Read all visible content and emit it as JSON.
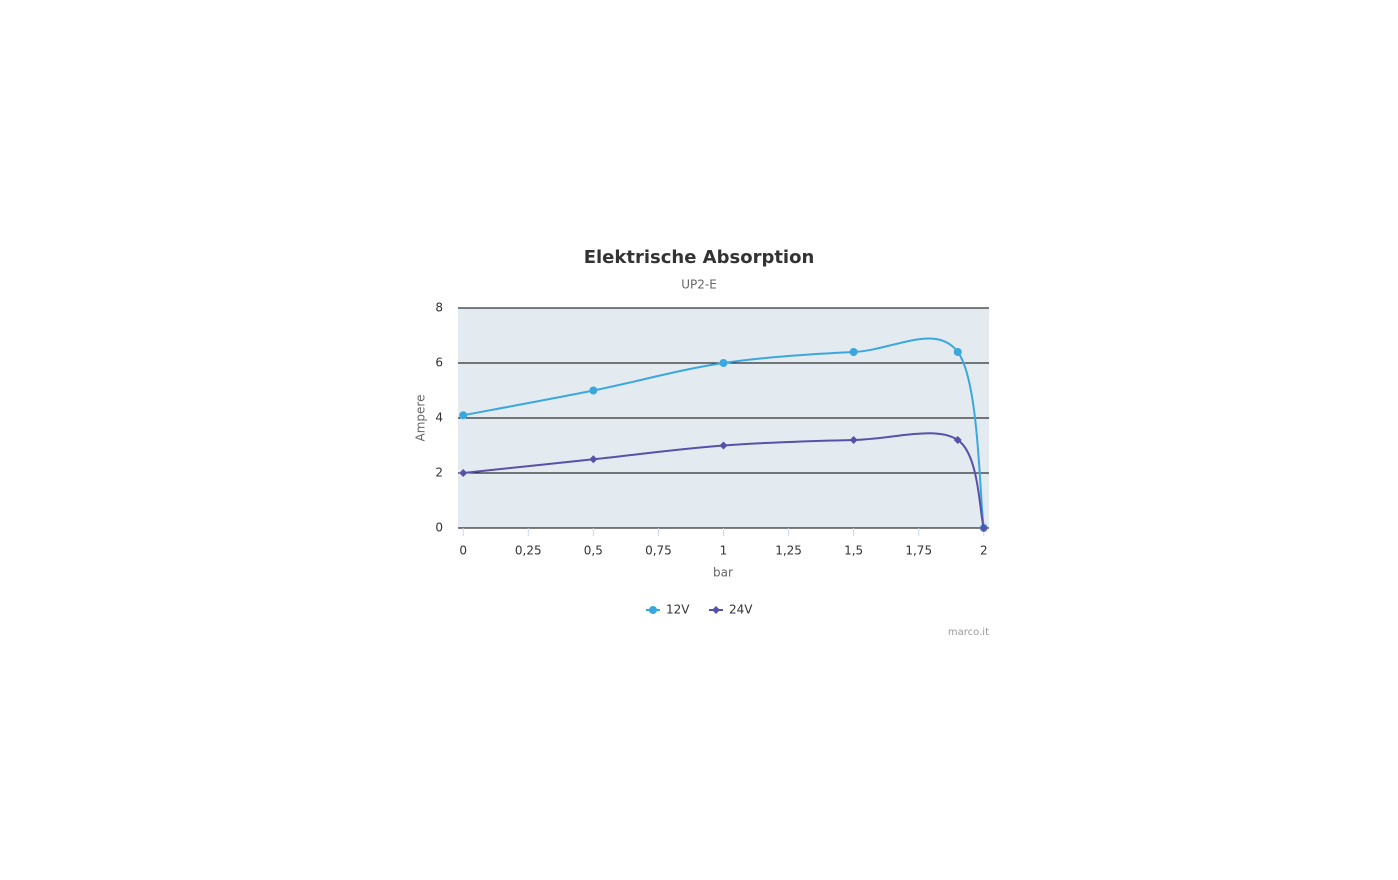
{
  "chart_data": {
    "type": "line",
    "title": "Elektrische Absorption",
    "subtitle": "UP2-E",
    "x_label": "bar",
    "y_label": "Ampere",
    "credits": "marco.it",
    "x": [
      0,
      0.5,
      1,
      1.5,
      1.9,
      2
    ],
    "series": [
      {
        "name": "12V",
        "color": "#3ba8dd",
        "marker": "circle",
        "values": [
          4.1,
          5,
          6,
          6.4,
          6.4,
          0
        ]
      },
      {
        "name": "24V",
        "color": "#5851aa",
        "marker": "diamond",
        "values": [
          2,
          2.5,
          3,
          3.2,
          3.2,
          0
        ]
      }
    ],
    "xlim": [
      -0.02,
      2.02
    ],
    "xticks": [
      0,
      {
        "value": 0.25,
        "label": "0,25"
      },
      {
        "value": 0.5,
        "label": "0,5"
      },
      {
        "value": 0.75,
        "label": "0,75"
      },
      1,
      {
        "value": 1.25,
        "label": "1,25"
      },
      {
        "value": 1.5,
        "label": "1,5"
      },
      {
        "value": 1.75,
        "label": "1,75"
      },
      2
    ],
    "ylim": [
      0,
      8
    ],
    "yticks": [
      0,
      2,
      4,
      6,
      8
    ],
    "grid": true,
    "spline": true,
    "legend": "bottom"
  }
}
